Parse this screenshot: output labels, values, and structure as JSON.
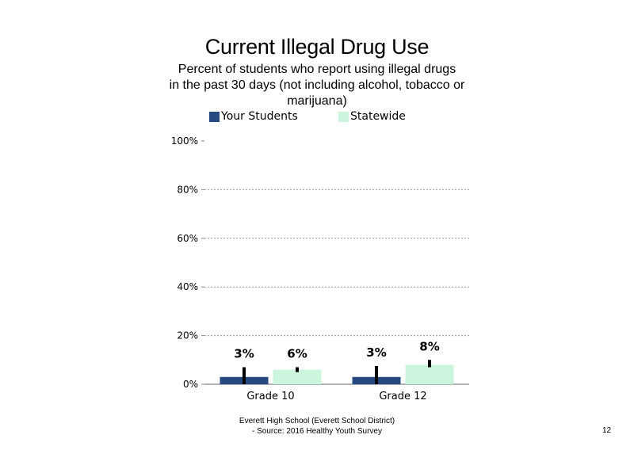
{
  "chart_data": {
    "type": "bar",
    "title": "Current Illegal Drug Use",
    "subtitle_lines": [
      "Percent of students who report using illegal drugs",
      "in the past 30 days (not including alcohol, tobacco or",
      "marijuana)"
    ],
    "categories": [
      "Grade 10",
      "Grade 12"
    ],
    "series": [
      {
        "name": "Your Students",
        "color": "#264a7f",
        "values": [
          3,
          3
        ],
        "labels": [
          "3%",
          "3%"
        ],
        "error_bars": [
          [
            0,
            7
          ],
          [
            0,
            7.5
          ]
        ]
      },
      {
        "name": "Statewide",
        "color": "#ccf5dd",
        "values": [
          6,
          8
        ],
        "labels": [
          "6%",
          "8%"
        ],
        "error_bars": [
          [
            5,
            7
          ],
          [
            7,
            10
          ]
        ]
      }
    ],
    "yticks": [
      "0%",
      "20%",
      "40%",
      "60%",
      "80%",
      "100%"
    ],
    "ylim": [
      0,
      100
    ],
    "grid": true,
    "legend_position": "top"
  },
  "footer": {
    "line1": "Everett High School (Everett School District)",
    "line2": "- Source: 2016 Healthy Youth Survey"
  },
  "page_number": "12"
}
